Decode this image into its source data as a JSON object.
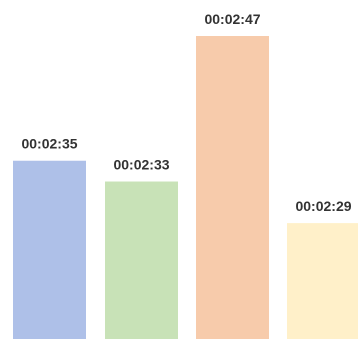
{
  "chart_data": {
    "type": "bar",
    "categories": [
      "",
      "",
      "",
      ""
    ],
    "values": [
      155,
      153,
      167,
      149
    ],
    "data_labels": [
      "00:02:35",
      "00:02:33",
      "00:02:47",
      "00:02:29"
    ],
    "colors": [
      "#AEC0E8",
      "#C8E2B7",
      "#F7CBAB",
      "#FFF0C9"
    ],
    "ylim": [
      137.85,
      167
    ],
    "grid": false,
    "axes_visible": false,
    "legend": "none"
  }
}
